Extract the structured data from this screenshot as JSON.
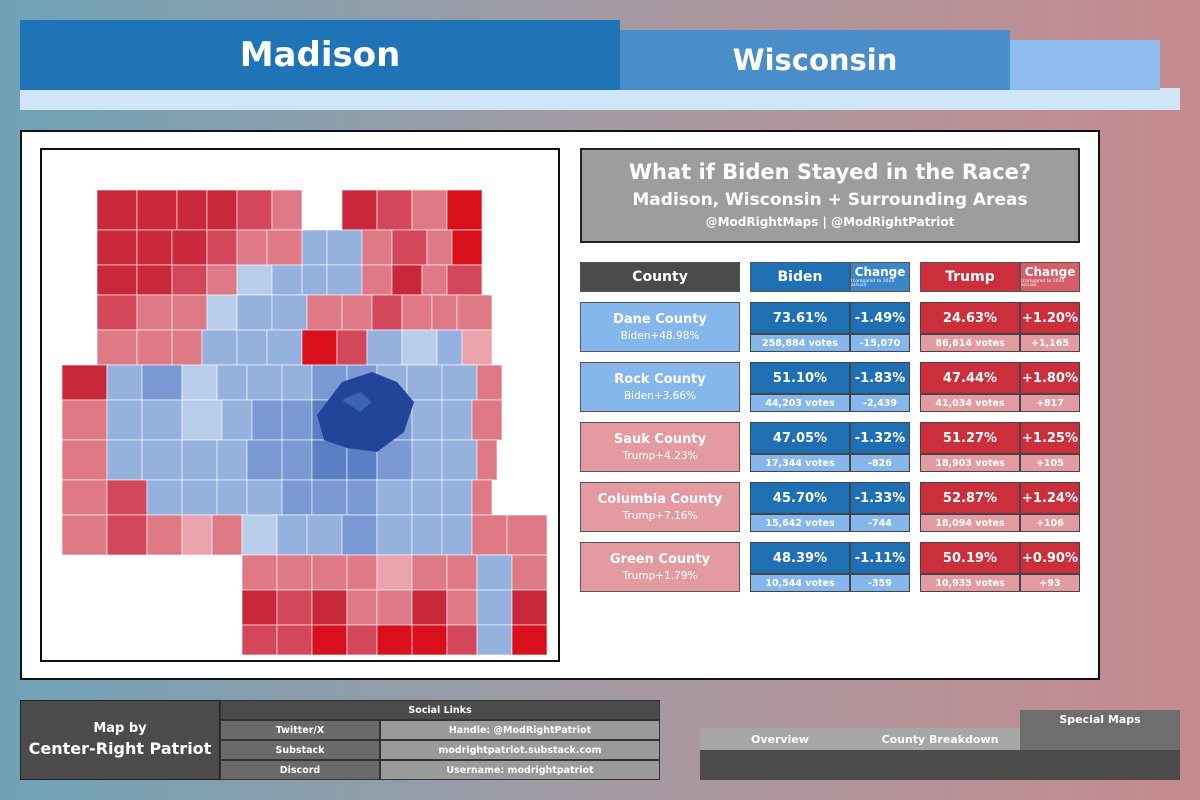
{
  "header": {
    "city": "Madison",
    "state": "Wisconsin"
  },
  "title": {
    "line1": "What if Biden Stayed in the Race?",
    "line2": "Madison, Wisconsin + Surrounding Areas",
    "line3": "@ModRightMaps | @ModRightPatriot"
  },
  "table": {
    "head_county": "County",
    "head_biden": "Biden",
    "head_trump": "Trump",
    "head_change": "Change",
    "head_change_note": "(compared to 2024 actual)",
    "rows": [
      {
        "county": "Dane County",
        "margin": "Biden+48.98%",
        "biden_pct": "73.61%",
        "biden_chg": "-1.49%",
        "biden_votes": "258,884 votes",
        "biden_vchg": "-15,070",
        "trump_pct": "24.63%",
        "trump_chg": "+1.20%",
        "trump_votes": "86,614 votes",
        "trump_vchg": "+1,165",
        "lean": "biden"
      },
      {
        "county": "Rock County",
        "margin": "Biden+3.66%",
        "biden_pct": "51.10%",
        "biden_chg": "-1.83%",
        "biden_votes": "44,203 votes",
        "biden_vchg": "-2,439",
        "trump_pct": "47.44%",
        "trump_chg": "+1.80%",
        "trump_votes": "41,034 votes",
        "trump_vchg": "+817",
        "lean": "biden"
      },
      {
        "county": "Sauk County",
        "margin": "Trump+4.23%",
        "biden_pct": "47.05%",
        "biden_chg": "-1.32%",
        "biden_votes": "17,344 votes",
        "biden_vchg": "-826",
        "trump_pct": "51.27%",
        "trump_chg": "+1.25%",
        "trump_votes": "18,903 votes",
        "trump_vchg": "+105",
        "lean": "trump"
      },
      {
        "county": "Columbia County",
        "margin": "Trump+7.16%",
        "biden_pct": "45.70%",
        "biden_chg": "-1.33%",
        "biden_votes": "15,642 votes",
        "biden_vchg": "-744",
        "trump_pct": "52.87%",
        "trump_chg": "+1.24%",
        "trump_votes": "18,094 votes",
        "trump_vchg": "+106",
        "lean": "trump"
      },
      {
        "county": "Green County",
        "margin": "Trump+1.79%",
        "biden_pct": "48.39%",
        "biden_chg": "-1.11%",
        "biden_votes": "10,544 votes",
        "biden_vchg": "-359",
        "trump_pct": "50.19%",
        "trump_chg": "+0.90%",
        "trump_votes": "10,935 votes",
        "trump_vchg": "+93",
        "lean": "trump"
      }
    ]
  },
  "credit": {
    "line1": "Map by",
    "line2": "Center-Right Patriot"
  },
  "social": {
    "title": "Social Links",
    "rows": [
      {
        "label": "Twitter/X",
        "value": "Handle: @ModRightPatriot"
      },
      {
        "label": "Substack",
        "value": "modrightpatriot.substack.com"
      },
      {
        "label": "Discord",
        "value": "Username: modrightpatriot"
      }
    ]
  },
  "tabs": {
    "overview": "Overview",
    "county_breakdown": "County Breakdown",
    "special_maps": "Special Maps"
  },
  "colors": {
    "biden_dark": "#1f6fb4",
    "biden_mid": "#3a86c8",
    "biden_light": "#86b7ec",
    "trump_dark": "#cb2f3c",
    "trump_mid": "#d75d66",
    "trump_light": "#e39ba1",
    "header_dark": "#4b4b4b",
    "panel_gray": "#9d9d9d"
  }
}
